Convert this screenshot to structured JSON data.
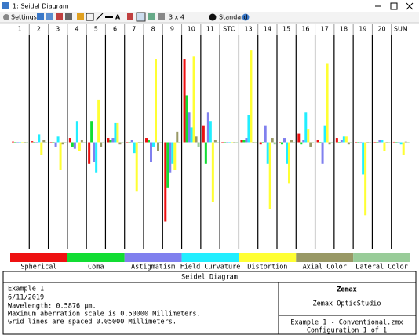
{
  "window": {
    "title": "1: Seidel Diagram"
  },
  "toolbar": {
    "settings": "Settings",
    "layout": "3 x 4",
    "style": "Standard"
  },
  "chart_data": {
    "type": "bar",
    "categories": [
      "1",
      "2",
      "3",
      "4",
      "5",
      "6",
      "7",
      "8",
      "9",
      "10",
      "11",
      "STO",
      "13",
      "14",
      "15",
      "16",
      "17",
      "18",
      "19",
      "20",
      "SUM"
    ],
    "ylim": [
      -0.5,
      0.5
    ],
    "series": [
      {
        "name": "Spherical",
        "color": "#ee1111",
        "values": [
          0.003,
          0.005,
          0,
          0.02,
          -0.1,
          0.02,
          0,
          0.02,
          -0.37,
          0.39,
          0.08,
          0,
          0.01,
          -0.01,
          0,
          0.04,
          0.01,
          0.02,
          0,
          0,
          0.002
        ]
      },
      {
        "name": "Coma",
        "color": "#11dd33",
        "values": [
          0,
          0,
          0,
          -0.02,
          0.1,
          0.01,
          0,
          0.01,
          -0.21,
          0.22,
          -0.1,
          0,
          0.01,
          0,
          -0.01,
          -0.01,
          0,
          0,
          0,
          0,
          0
        ]
      },
      {
        "name": "Astigmatism",
        "color": "#8080ee",
        "values": [
          0,
          0,
          -0.02,
          -0.03,
          -0.09,
          0.02,
          0.01,
          -0.09,
          -0.14,
          0.14,
          0.14,
          0,
          0.02,
          0.08,
          0.02,
          0.01,
          -0.1,
          0.01,
          0,
          0.01,
          0
        ]
      },
      {
        "name": "Field Curvature",
        "color": "#22eeff",
        "values": [
          0,
          0.037,
          0.03,
          0.1,
          -0.14,
          0.09,
          -0.05,
          -0.02,
          -0.1,
          0.07,
          0.1,
          0,
          0.13,
          -0.1,
          -0.1,
          0.14,
          0.08,
          0.03,
          -0.15,
          0.01,
          -0.01
        ]
      },
      {
        "name": "Distortion",
        "color": "#ffff33",
        "values": [
          0,
          -0.06,
          -0.13,
          -0.04,
          0.2,
          0.09,
          -0.23,
          0.39,
          -0.13,
          0.4,
          -0.28,
          0,
          0.43,
          -0.31,
          -0.19,
          0.06,
          0.37,
          0.03,
          -0.34,
          -0.04,
          -0.06
        ]
      },
      {
        "name": "Axial Color",
        "color": "#999966",
        "values": [
          0,
          0.01,
          -0.01,
          0.01,
          -0.02,
          -0.01,
          0,
          -0.04,
          0.05,
          0.03,
          0.01,
          0,
          0,
          0.02,
          0.01,
          -0.02,
          -0.01,
          -0.01,
          0,
          0,
          0.003
        ]
      },
      {
        "name": "Lateral Color",
        "color": "#99cc99",
        "values": [
          0,
          0,
          0,
          0,
          0,
          0,
          0,
          0,
          0,
          -0.02,
          0,
          0,
          0,
          -0.01,
          0,
          0,
          0,
          0,
          0,
          0,
          0
        ]
      }
    ]
  },
  "footer": {
    "title": "Seidel Diagram",
    "lines": [
      "Example 1",
      "6/11/2019",
      "Wavelength: 0.5876 µm.",
      "Maximum aberration scale is 0.50000 Millimeters.",
      "Grid lines are spaced 0.05000 Millimeters."
    ],
    "company": "Zemax",
    "product": "Zemax OpticStudio",
    "file": "Example 1 - Conventional.zmx",
    "config": "Configuration 1 of 1"
  }
}
